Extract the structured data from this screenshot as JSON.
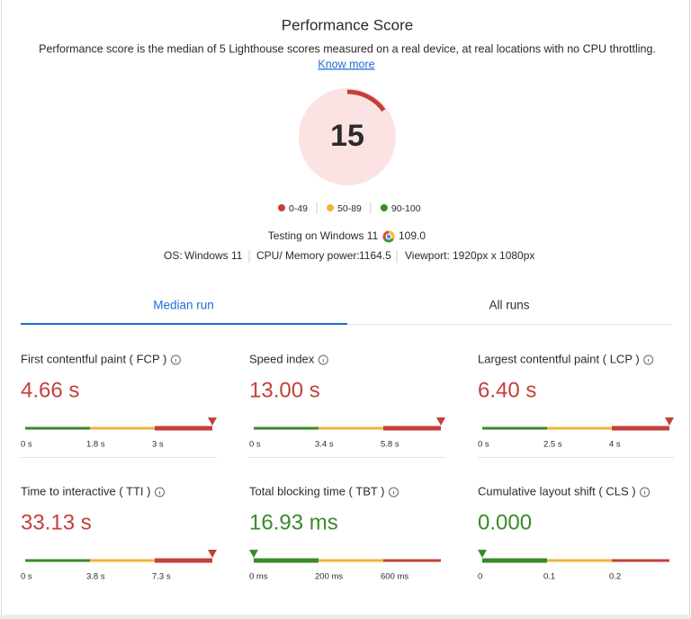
{
  "header": {
    "title": "Performance Score",
    "description": "Performance score is the median of 5 Lighthouse scores measured on a real device, at real locations with no CPU throttling.",
    "link": "Know more"
  },
  "score": {
    "value": 15,
    "color": "#c5403a"
  },
  "legend": [
    {
      "label": "0-49",
      "color": "#c5403a"
    },
    {
      "label": "50-89",
      "color": "#edb53a"
    },
    {
      "label": "90-100",
      "color": "#3a8a2a"
    }
  ],
  "testing": {
    "label": "Testing on Windows 11",
    "browser_version": "109.0"
  },
  "environment": {
    "os_label": "OS:",
    "os": "Windows 11",
    "cpu_label": "CPU/ Memory power:",
    "cpu": "1164.5",
    "viewport_label": "Viewport:",
    "viewport": "1920px x 1080px"
  },
  "tabs": [
    "Median run",
    "All runs"
  ],
  "metrics": [
    {
      "name": "First contentful paint ( FCP )",
      "value": "4.66 s",
      "color": "#c5403a",
      "ticks": [
        "0 s",
        "1.8 s",
        "3 s"
      ]
    },
    {
      "name": "Speed index",
      "value": "13.00 s",
      "color": "#c5403a",
      "ticks": [
        "0 s",
        "3.4 s",
        "5.8 s"
      ]
    },
    {
      "name": "Largest contentful paint ( LCP )",
      "value": "6.40 s",
      "color": "#c5403a",
      "ticks": [
        "0 s",
        "2.5 s",
        "4 s"
      ]
    },
    {
      "name": "Time to interactive ( TTI )",
      "value": "33.13 s",
      "color": "#c5403a",
      "ticks": [
        "0 s",
        "3.8 s",
        "7.3 s"
      ]
    },
    {
      "name": "Total blocking time ( TBT )",
      "value": "16.93 ms",
      "color": "#3a8a2a",
      "ticks": [
        "0 ms",
        "200 ms",
        "600 ms"
      ]
    },
    {
      "name": "Cumulative layout shift ( CLS )",
      "value": "0.000",
      "color": "#3a8a2a",
      "ticks": [
        "0",
        "0.1",
        "0.2"
      ]
    }
  ]
}
